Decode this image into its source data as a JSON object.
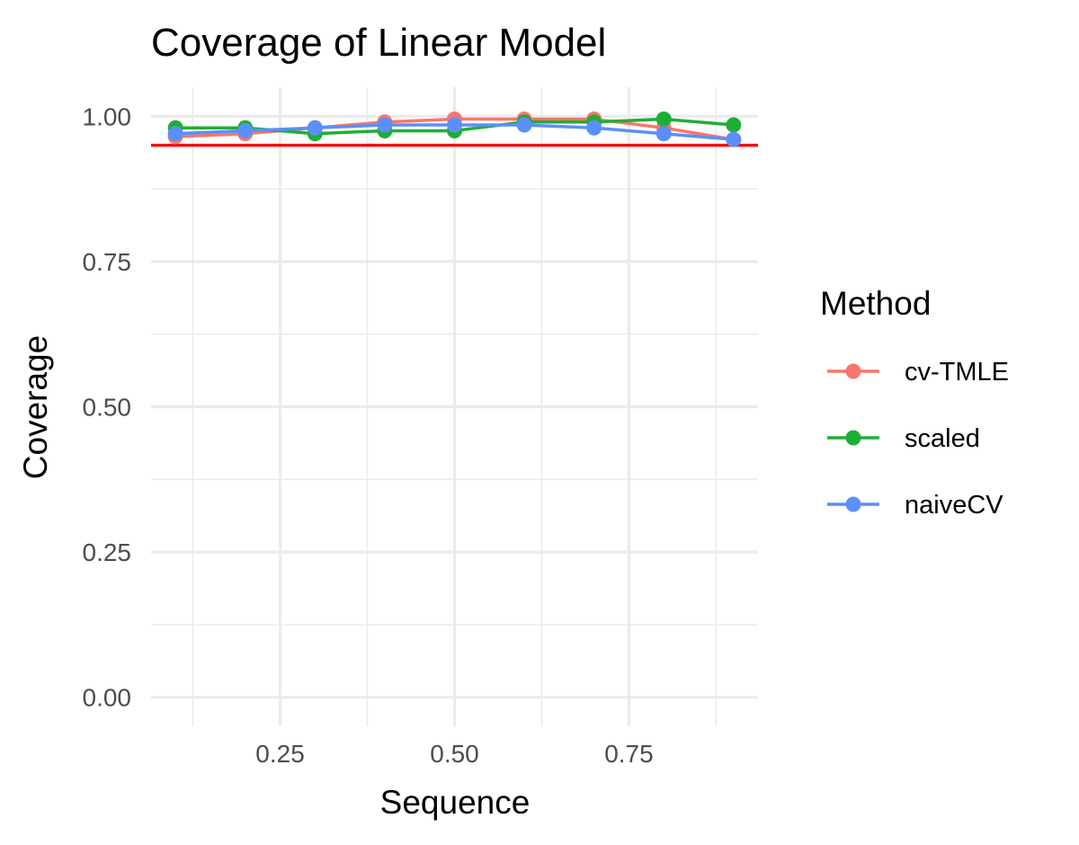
{
  "chart_data": {
    "type": "line",
    "title": "Coverage of Linear Model",
    "xlabel": "Sequence",
    "ylabel": "Coverage",
    "xlim": [
      0.065,
      0.935
    ],
    "ylim": [
      -0.05,
      1.05
    ],
    "x_ticks": [
      "0.25",
      "0.50",
      "0.75"
    ],
    "y_ticks": [
      "0.00",
      "0.25",
      "0.50",
      "0.75",
      "1.00"
    ],
    "grid": true,
    "legend": {
      "title": "Method",
      "position": "right"
    },
    "x": [
      0.1,
      0.2,
      0.3,
      0.4,
      0.5,
      0.6,
      0.7,
      0.8,
      0.9
    ],
    "series": [
      {
        "name": "cv-TMLE",
        "color": "#F8766D",
        "values": [
          0.965,
          0.97,
          0.98,
          0.99,
          0.995,
          0.995,
          0.995,
          0.98,
          0.96
        ]
      },
      {
        "name": "scaled",
        "color": "#1FAE35",
        "values": [
          0.98,
          0.98,
          0.97,
          0.975,
          0.975,
          0.99,
          0.99,
          0.995,
          0.985
        ]
      },
      {
        "name": "naiveCV",
        "color": "#5B8FF9",
        "values": [
          0.97,
          0.975,
          0.98,
          0.985,
          0.985,
          0.985,
          0.98,
          0.97,
          0.96
        ]
      }
    ],
    "reference_line": {
      "y": 0.95,
      "color": "#EE1111"
    }
  }
}
